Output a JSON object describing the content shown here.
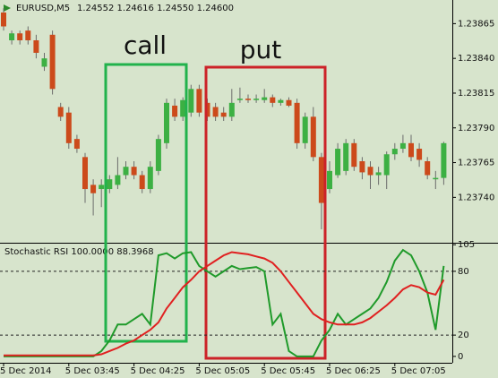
{
  "chart_data": [
    {
      "type": "candlestick",
      "symbol": "EURUSD,M5",
      "quote": "1.24552 1.24616 1.24550 1.24600",
      "up_color": "#3cb043",
      "down_color": "#cc4a1b",
      "ylim": [
        1.23708,
        1.23882
      ],
      "yticks": [
        1.23865,
        {
          "value": 1.2384,
          "label": "1.23840"
        },
        1.23815,
        {
          "value": 1.2379,
          "label": "1.23790"
        },
        1.23765,
        {
          "value": 1.2374,
          "label": "1.23740"
        }
      ],
      "annotations": [
        {
          "text": "call",
          "color": "#22b24c"
        },
        {
          "text": "put",
          "color": "#cc2228"
        }
      ],
      "candles": [
        [
          1.23873,
          1.23876,
          1.2386,
          1.23863
        ],
        [
          1.23853,
          1.2386,
          1.2385,
          1.23858
        ],
        [
          1.23858,
          1.2386,
          1.2385,
          1.23853
        ],
        [
          1.2386,
          1.23863,
          1.2385,
          1.23853
        ],
        [
          1.23853,
          1.23857,
          1.2384,
          1.23844
        ],
        [
          1.23834,
          1.23844,
          1.23831,
          1.2384
        ],
        [
          1.23857,
          1.2386,
          1.23814,
          1.23818
        ],
        [
          1.23805,
          1.23808,
          1.23795,
          1.23798
        ],
        [
          1.23801,
          1.23805,
          1.23775,
          1.23779
        ],
        [
          1.23782,
          1.23785,
          1.23772,
          1.23775
        ],
        [
          1.23769,
          1.23772,
          1.23736,
          1.23746
        ],
        [
          1.23749,
          1.23753,
          1.23727,
          1.23743
        ],
        [
          1.23746,
          1.23753,
          1.23733,
          1.23749
        ],
        [
          1.23746,
          1.23756,
          1.23743,
          1.23753
        ],
        [
          1.23749,
          1.23769,
          1.23746,
          1.23756
        ],
        [
          1.23756,
          1.23766,
          1.23753,
          1.23762
        ],
        [
          1.23762,
          1.23766,
          1.23753,
          1.23756
        ],
        [
          1.23756,
          1.23759,
          1.23743,
          1.23746
        ],
        [
          1.23746,
          1.23766,
          1.23743,
          1.23762
        ],
        [
          1.23759,
          1.23785,
          1.23756,
          1.23782
        ],
        [
          1.23779,
          1.23811,
          1.23775,
          1.23808
        ],
        [
          1.23806,
          1.23811,
          1.23795,
          1.23798
        ],
        [
          1.23798,
          1.23812,
          1.23795,
          1.2381
        ],
        [
          1.23801,
          1.23821,
          1.23798,
          1.23818
        ],
        [
          1.23818,
          1.23821,
          1.23798,
          1.23801
        ],
        [
          1.23808,
          1.23811,
          1.23795,
          1.23798
        ],
        [
          1.23805,
          1.23808,
          1.23795,
          1.23798
        ],
        [
          1.23801,
          1.23805,
          1.23795,
          1.23798
        ],
        [
          1.23798,
          1.23818,
          1.23795,
          1.23808
        ],
        [
          1.2381,
          1.23819,
          1.23808,
          1.23811
        ],
        [
          1.23811,
          1.23814,
          1.23808,
          1.2381
        ],
        [
          1.2381,
          1.23814,
          1.23808,
          1.23811
        ],
        [
          1.2381,
          1.23818,
          1.23808,
          1.23812
        ],
        [
          1.23812,
          1.23814,
          1.23805,
          1.23808
        ],
        [
          1.23808,
          1.23811,
          1.23806,
          1.2381
        ],
        [
          1.2381,
          1.23812,
          1.23805,
          1.23806
        ],
        [
          1.23808,
          1.23811,
          1.23775,
          1.23779
        ],
        [
          1.23779,
          1.23801,
          1.23775,
          1.23798
        ],
        [
          1.23798,
          1.23805,
          1.23766,
          1.23769
        ],
        [
          1.23769,
          1.23772,
          1.23717,
          1.23736
        ],
        [
          1.23746,
          1.23766,
          1.23743,
          1.23759
        ],
        [
          1.23756,
          1.23779,
          1.23754,
          1.23775
        ],
        [
          1.23759,
          1.23782,
          1.23756,
          1.23779
        ],
        [
          1.23779,
          1.23782,
          1.23759,
          1.23762
        ],
        [
          1.23766,
          1.23769,
          1.23753,
          1.23758
        ],
        [
          1.23762,
          1.23766,
          1.23746,
          1.23756
        ],
        [
          1.23756,
          1.23762,
          1.23749,
          1.23758
        ],
        [
          1.23756,
          1.23773,
          1.23746,
          1.23771
        ],
        [
          1.23771,
          1.23779,
          1.23767,
          1.23775
        ],
        [
          1.23775,
          1.23785,
          1.23772,
          1.23779
        ],
        [
          1.23779,
          1.23785,
          1.23766,
          1.23769
        ],
        [
          1.23775,
          1.23779,
          1.23762,
          1.23767
        ],
        [
          1.23766,
          1.23769,
          1.23753,
          1.23756
        ],
        [
          1.23753,
          1.23759,
          1.23746,
          1.23754
        ],
        [
          1.23754,
          1.2378,
          1.23749,
          1.23779
        ]
      ]
    },
    {
      "type": "line",
      "title": "Stochastic RSI 100.0000 88.3968",
      "ylim": [
        -6,
        106
      ],
      "yticks": [
        105,
        80,
        20,
        0
      ],
      "levels": [
        80,
        20
      ],
      "categories": [
        "5 Dec 2014",
        null,
        null,
        null,
        null,
        null,
        null,
        null,
        "5 Dec 03:45",
        null,
        null,
        null,
        null,
        null,
        null,
        null,
        "5 Dec 04:25",
        null,
        null,
        null,
        null,
        null,
        null,
        null,
        "5 Dec 05:05",
        null,
        null,
        null,
        null,
        null,
        null,
        null,
        "5 Dec 05:45",
        null,
        null,
        null,
        null,
        null,
        null,
        null,
        "5 Dec 06:25",
        null,
        null,
        null,
        null,
        null,
        null,
        null,
        "5 Dec 07:05",
        null,
        null,
        null,
        null,
        null,
        null
      ],
      "series": [
        {
          "color": "#1f9a2a",
          "values": [
            0,
            0,
            0,
            0,
            0,
            0,
            0,
            0,
            0,
            0,
            0,
            0,
            5,
            15,
            30,
            30,
            35,
            40,
            30,
            95,
            97,
            92,
            97,
            98,
            85,
            80,
            75,
            80,
            85,
            82,
            83,
            84,
            80,
            30,
            40,
            5,
            0,
            0,
            0,
            15,
            25,
            40,
            30,
            35,
            40,
            45,
            55,
            70,
            90,
            100,
            95,
            80,
            60,
            25,
            85
          ]
        },
        {
          "color": "#e02020",
          "values": [
            1,
            1,
            1,
            1,
            1,
            1,
            1,
            1,
            1,
            1,
            1,
            1,
            2,
            5,
            8,
            12,
            15,
            20,
            25,
            32,
            45,
            55,
            65,
            72,
            80,
            85,
            90,
            95,
            98,
            97,
            96,
            94,
            92,
            88,
            80,
            70,
            60,
            50,
            40,
            35,
            32,
            30,
            30,
            30,
            32,
            36,
            42,
            48,
            55,
            63,
            67,
            65,
            60,
            58,
            72
          ]
        }
      ]
    }
  ]
}
